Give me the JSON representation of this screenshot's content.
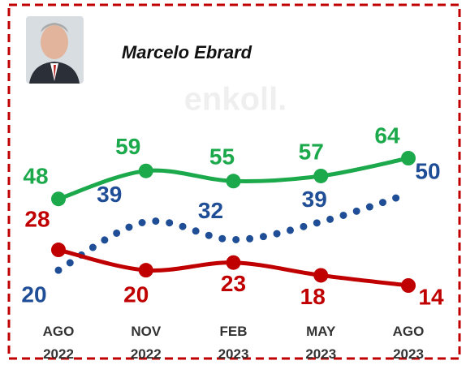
{
  "chart_data": {
    "type": "line",
    "title": "Marcelo Ebrard",
    "watermark": "enkoll.",
    "categories": [
      [
        "AGO",
        "2022"
      ],
      [
        "NOV",
        "2022"
      ],
      [
        "FEB",
        "2023"
      ],
      [
        "MAY",
        "2023"
      ],
      [
        "AGO",
        "2023"
      ]
    ],
    "series": [
      {
        "color": "#1ca94c",
        "style": "solid",
        "values": [
          48,
          59,
          55,
          57,
          64
        ]
      },
      {
        "color": "#1f4e96",
        "style": "dotted",
        "values": [
          20,
          39,
          32,
          39,
          50
        ]
      },
      {
        "color": "#c00000",
        "style": "solid",
        "values": [
          28,
          20,
          23,
          18,
          14
        ]
      }
    ]
  }
}
